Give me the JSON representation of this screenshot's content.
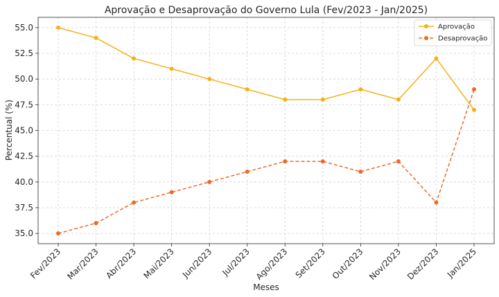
{
  "chart_data": {
    "type": "line",
    "title": "Aprovação e Desaprovação do Governo Lula (Fev/2023 - Jan/2025)",
    "xlabel": "Meses",
    "ylabel": "Percentual (%)",
    "categories": [
      "Fev/2023",
      "Mar/2023",
      "Abr/2023",
      "Mai/2023",
      "Jun/2023",
      "Jul/2023",
      "Ago/2023",
      "Set/2023",
      "Out/2023",
      "Nov/2023",
      "Dez/2023",
      "Jan/2025"
    ],
    "ylim": [
      34.0,
      56.0
    ],
    "yticks": [
      35.0,
      37.5,
      40.0,
      42.5,
      45.0,
      47.5,
      50.0,
      52.5,
      55.0
    ],
    "ytick_labels": [
      "35.0",
      "37.5",
      "40.0",
      "42.5",
      "45.0",
      "47.5",
      "50.0",
      "52.5",
      "55.0"
    ],
    "grid": true,
    "legend_position": "top-right",
    "series": [
      {
        "name": "Aprovação",
        "color": "#f5b014",
        "style": "solid",
        "marker": "circle",
        "values": [
          55,
          54,
          52,
          51,
          50,
          49,
          48,
          48,
          49,
          48,
          52,
          47
        ]
      },
      {
        "name": "Desaprovação",
        "color": "#ec6a28",
        "style": "dashed",
        "marker": "circle",
        "values": [
          35,
          36,
          38,
          39,
          40,
          41,
          42,
          42,
          41,
          42,
          38,
          49
        ]
      }
    ]
  }
}
